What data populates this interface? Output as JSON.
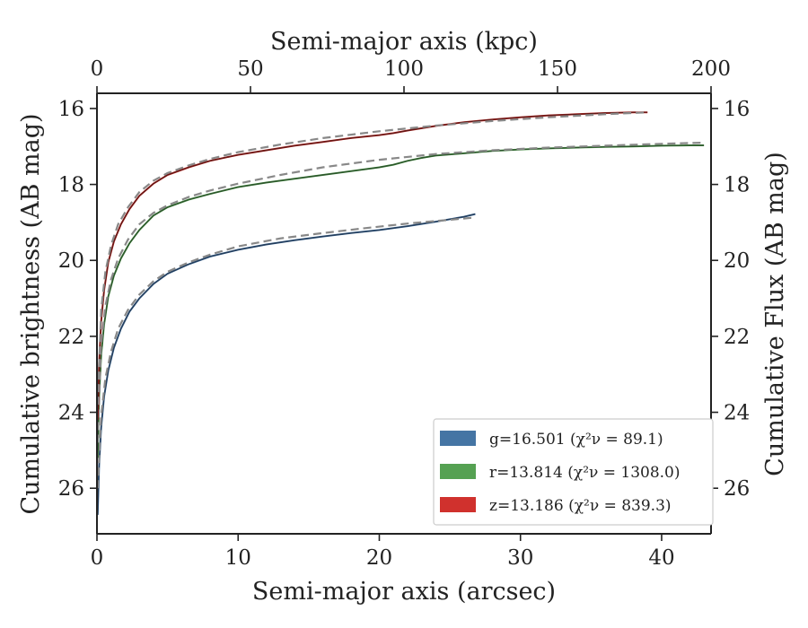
{
  "chart_data": {
    "type": "line",
    "xlabel": "Semi-major axis (arcsec)",
    "ylabel_left": "Cumulative brightness (AB mag)",
    "ylabel_right": "Cumulative Flux (AB mag)",
    "xlabel_top": "Semi-major axis (kpc)",
    "xlim": [
      0,
      43.5
    ],
    "ylim": [
      27.2,
      15.6
    ],
    "y_inverted": true,
    "x_ticks": [
      0,
      10,
      20,
      30,
      40
    ],
    "y_ticks": [
      16,
      18,
      20,
      22,
      24,
      26
    ],
    "top_xlim": [
      0,
      200
    ],
    "top_x_ticks": [
      0,
      50,
      100,
      150,
      200
    ],
    "legend_position": "lower right",
    "grid": false,
    "series": [
      {
        "name": "g=16.501",
        "chi_label": "(χ²ν = 89.1)",
        "color": "#4575a4",
        "inner_color": "#1a2a40",
        "x": [
          0.05,
          0.15,
          0.3,
          0.5,
          0.8,
          1.2,
          1.7,
          2.3,
          3,
          4,
          5,
          6.5,
          8,
          10,
          12,
          14,
          16,
          18,
          20,
          22,
          24,
          26,
          26.8
        ],
        "y": [
          26.7,
          25.4,
          24.4,
          23.6,
          22.9,
          22.3,
          21.8,
          21.35,
          21.0,
          20.62,
          20.35,
          20.1,
          19.9,
          19.72,
          19.58,
          19.47,
          19.37,
          19.28,
          19.2,
          19.1,
          18.98,
          18.85,
          18.78
        ],
        "model": {
          "x": [
            0.05,
            0.3,
            0.6,
            1,
            1.5,
            2.2,
            3,
            4,
            5,
            6.5,
            8,
            10,
            13,
            16,
            19,
            22,
            25,
            26.8
          ],
          "y": [
            26.0,
            24.1,
            23.1,
            22.4,
            21.8,
            21.3,
            20.9,
            20.55,
            20.3,
            20.05,
            19.85,
            19.63,
            19.42,
            19.28,
            19.15,
            19.03,
            18.93,
            18.87
          ]
        }
      },
      {
        "name": "r=13.814",
        "chi_label": "(χ²ν = 1308.0)",
        "color": "#55a152",
        "inner_color": "#1e3a1d",
        "x": [
          0.05,
          0.15,
          0.3,
          0.5,
          0.8,
          1.2,
          1.7,
          2.3,
          3,
          4,
          5,
          6.5,
          8,
          10,
          12,
          14,
          16,
          18,
          20,
          21,
          22,
          23,
          24,
          26,
          28,
          30,
          32,
          34,
          36,
          38,
          40,
          42,
          43
        ],
        "y": [
          25.2,
          23.6,
          22.5,
          21.7,
          20.95,
          20.4,
          19.95,
          19.55,
          19.2,
          18.82,
          18.6,
          18.4,
          18.25,
          18.07,
          17.95,
          17.85,
          17.75,
          17.65,
          17.55,
          17.48,
          17.38,
          17.3,
          17.24,
          17.18,
          17.12,
          17.08,
          17.05,
          17.03,
          17.01,
          17.0,
          16.98,
          16.97,
          16.97
        ],
        "model": {
          "x": [
            0.05,
            0.3,
            0.6,
            1,
            1.5,
            2.2,
            3,
            4,
            5,
            6.5,
            8,
            10,
            13,
            16,
            20,
            24,
            28,
            32,
            36,
            40,
            43
          ],
          "y": [
            24.8,
            22.2,
            21.2,
            20.5,
            19.95,
            19.45,
            19.05,
            18.75,
            18.55,
            18.33,
            18.16,
            17.98,
            17.75,
            17.55,
            17.35,
            17.2,
            17.1,
            17.03,
            16.98,
            16.93,
            16.9
          ]
        }
      },
      {
        "name": "z=13.186",
        "chi_label": "(χ²ν = 839.3)",
        "color": "#d0312d",
        "inner_color": "#3a0f0e",
        "x": [
          0.05,
          0.15,
          0.3,
          0.5,
          0.8,
          1.2,
          1.7,
          2.3,
          3,
          4,
          5,
          6.5,
          8,
          10,
          12,
          14,
          16,
          18,
          20,
          21,
          22,
          24,
          26,
          28,
          30,
          32,
          34,
          36,
          38,
          39
        ],
        "y": [
          24.2,
          22.7,
          21.6,
          20.8,
          20.05,
          19.5,
          19.05,
          18.65,
          18.3,
          17.98,
          17.75,
          17.55,
          17.38,
          17.22,
          17.1,
          16.98,
          16.88,
          16.78,
          16.7,
          16.65,
          16.58,
          16.46,
          16.36,
          16.29,
          16.23,
          16.18,
          16.15,
          16.12,
          16.1,
          16.1
        ],
        "model": {
          "x": [
            0.05,
            0.3,
            0.6,
            1,
            1.5,
            2.2,
            3,
            4,
            5,
            6.5,
            8,
            10,
            13,
            16,
            20,
            24,
            28,
            32,
            36,
            39
          ],
          "y": [
            23.8,
            21.3,
            20.3,
            19.6,
            19.05,
            18.6,
            18.2,
            17.9,
            17.7,
            17.5,
            17.33,
            17.15,
            16.95,
            16.78,
            16.6,
            16.45,
            16.33,
            16.23,
            16.15,
            16.1
          ]
        }
      }
    ]
  }
}
